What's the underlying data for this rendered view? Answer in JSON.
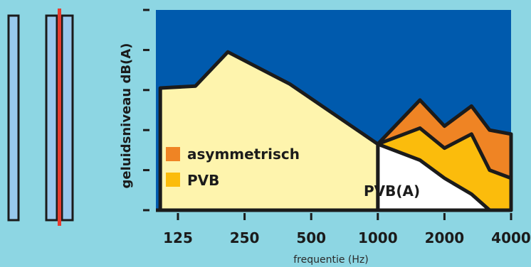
{
  "chart_data": {
    "type": "area",
    "xlabel": "frequentie (Hz)",
    "ylabel": "geluidsniveau dB(A)",
    "x_categories": [
      "125",
      "250",
      "500",
      "1000",
      "2000",
      "4000"
    ],
    "x_scale": "log2",
    "series": [
      {
        "name": "asymmetrisch",
        "color": "#ef8424",
        "points": [
          [
            1000,
            0.33
          ],
          [
            1550,
            0.55
          ],
          [
            2000,
            0.42
          ],
          [
            2650,
            0.52
          ],
          [
            3200,
            0.4
          ],
          [
            4000,
            0.38
          ]
        ]
      },
      {
        "name": "PVB",
        "color": "#fbbc0c",
        "points": [
          [
            1000,
            0.33
          ],
          [
            1550,
            0.41
          ],
          [
            2000,
            0.31
          ],
          [
            2650,
            0.38
          ],
          [
            3200,
            0.2
          ],
          [
            4000,
            0.16
          ]
        ]
      },
      {
        "name": "PVB(A)",
        "color": "#ffffff",
        "points": [
          [
            1000,
            0.33
          ],
          [
            1550,
            0.25
          ],
          [
            2000,
            0.16
          ],
          [
            2650,
            0.08
          ],
          [
            3200,
            0.0
          ],
          [
            4000,
            0.0
          ]
        ]
      },
      {
        "name": "",
        "color": "#fef4ad",
        "points": [
          [
            104,
            0.61
          ],
          [
            150,
            0.62
          ],
          [
            210,
            0.79
          ],
          [
            400,
            0.63
          ],
          [
            1000,
            0.33
          ]
        ]
      }
    ],
    "legend": [
      {
        "label": "asymmetrisch",
        "color": "#ef8424"
      },
      {
        "label": "PVB",
        "color": "#fbbc0c"
      }
    ],
    "annotations": [
      {
        "text": "PVB(A)"
      }
    ],
    "background_color": "#005aad",
    "glazing_illustration": {
      "panels": 3,
      "panel_color": "#98c8ec",
      "interlayer_color": "#e53b2f"
    }
  }
}
